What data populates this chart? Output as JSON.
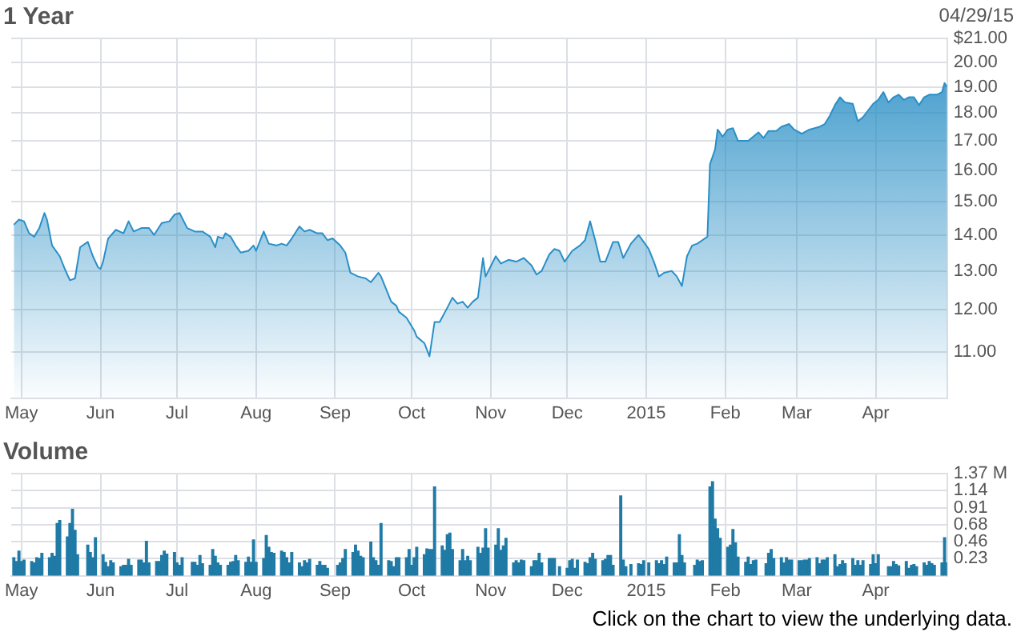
{
  "chart_data": [
    {
      "type": "area",
      "title": "1 Year",
      "annotations": [
        "04/29/15"
      ],
      "log": "y",
      "grid": true,
      "legend": false,
      "xlim": [
        "2014-04-27",
        "2015-04-29"
      ],
      "xticks": [
        {
          "value": "2014-05-01",
          "label": "May"
        },
        {
          "value": "2014-06-01",
          "label": "Jun"
        },
        {
          "value": "2014-07-01",
          "label": "Jul"
        },
        {
          "value": "2014-08-01",
          "label": "Aug"
        },
        {
          "value": "2014-09-01",
          "label": "Sep"
        },
        {
          "value": "2014-10-01",
          "label": "Oct"
        },
        {
          "value": "2014-11-01",
          "label": "Nov"
        },
        {
          "value": "2014-12-01",
          "label": "Dec"
        },
        {
          "value": "2015-01-01",
          "label": "2015"
        },
        {
          "value": "2015-02-01",
          "label": "Feb"
        },
        {
          "value": "2015-03-01",
          "label": "Mar"
        },
        {
          "value": "2015-04-01",
          "label": "Apr"
        }
      ],
      "ylim": [
        10,
        21
      ],
      "yticks": [
        {
          "value": 11,
          "label": "11.00"
        },
        {
          "value": 12,
          "label": "12.00"
        },
        {
          "value": 13,
          "label": "13.00"
        },
        {
          "value": 14,
          "label": "14.00"
        },
        {
          "value": 15,
          "label": "15.00"
        },
        {
          "value": 16,
          "label": "16.00"
        },
        {
          "value": 17,
          "label": "17.00"
        },
        {
          "value": 18,
          "label": "18.00"
        },
        {
          "value": 19,
          "label": "19.00"
        },
        {
          "value": 20,
          "label": "20.00"
        },
        {
          "value": 21,
          "label": "$21.00"
        }
      ],
      "color": "#2a8fc6",
      "x": [
        "2014-04-28",
        "2014-04-30",
        "2014-05-02",
        "2014-05-04",
        "2014-05-06",
        "2014-05-08",
        "2014-05-10",
        "2014-05-11",
        "2014-05-13",
        "2014-05-16",
        "2014-05-18",
        "2014-05-20",
        "2014-05-22",
        "2014-05-24",
        "2014-05-27",
        "2014-05-29",
        "2014-05-31",
        "2014-06-01",
        "2014-06-02",
        "2014-06-04",
        "2014-06-07",
        "2014-06-10",
        "2014-06-12",
        "2014-06-14",
        "2014-06-17",
        "2014-06-20",
        "2014-06-22",
        "2014-06-25",
        "2014-06-28",
        "2014-06-30",
        "2014-07-02",
        "2014-07-05",
        "2014-07-08",
        "2014-07-11",
        "2014-07-14",
        "2014-07-16",
        "2014-07-17",
        "2014-07-19",
        "2014-07-20",
        "2014-07-22",
        "2014-07-24",
        "2014-07-26",
        "2014-07-29",
        "2014-07-31",
        "2014-08-01",
        "2014-08-04",
        "2014-08-06",
        "2014-08-09",
        "2014-08-11",
        "2014-08-13",
        "2014-08-15",
        "2014-08-18",
        "2014-08-20",
        "2014-08-22",
        "2014-08-25",
        "2014-08-27",
        "2014-08-29",
        "2014-08-31",
        "2014-09-03",
        "2014-09-05",
        "2014-09-07",
        "2014-09-10",
        "2014-09-13",
        "2014-09-15",
        "2014-09-18",
        "2014-09-19",
        "2014-09-23",
        "2014-09-25",
        "2014-09-26",
        "2014-09-29",
        "2014-10-02",
        "2014-10-03",
        "2014-10-06",
        "2014-10-08",
        "2014-10-10",
        "2014-10-12",
        "2014-10-15",
        "2014-10-17",
        "2014-10-19",
        "2014-10-21",
        "2014-10-23",
        "2014-10-25",
        "2014-10-27",
        "2014-10-29",
        "2014-10-30",
        "2014-11-03",
        "2014-11-05",
        "2014-11-08",
        "2014-11-11",
        "2014-11-14",
        "2014-11-17",
        "2014-11-19",
        "2014-11-21",
        "2014-11-24",
        "2014-11-26",
        "2014-11-28",
        "2014-11-30",
        "2014-12-03",
        "2014-12-06",
        "2014-12-08",
        "2014-12-10",
        "2014-12-12",
        "2014-12-14",
        "2014-12-16",
        "2014-12-19",
        "2014-12-21",
        "2014-12-23",
        "2014-12-26",
        "2014-12-29",
        "2014-12-31",
        "2015-01-02",
        "2015-01-04",
        "2015-01-06",
        "2015-01-08",
        "2015-01-11",
        "2015-01-13",
        "2015-01-15",
        "2015-01-17",
        "2015-01-19",
        "2015-01-21",
        "2015-01-23",
        "2015-01-25",
        "2015-01-26",
        "2015-01-28",
        "2015-01-29",
        "2015-01-31",
        "2015-02-02",
        "2015-02-04",
        "2015-02-06",
        "2015-02-10",
        "2015-02-14",
        "2015-02-16",
        "2015-02-18",
        "2015-02-21",
        "2015-02-23",
        "2015-02-26",
        "2015-02-28",
        "2015-03-03",
        "2015-03-06",
        "2015-03-10",
        "2015-03-12",
        "2015-03-14",
        "2015-03-16",
        "2015-03-18",
        "2015-03-20",
        "2015-03-23",
        "2015-03-25",
        "2015-03-27",
        "2015-03-31",
        "2015-04-02",
        "2015-04-04",
        "2015-04-06",
        "2015-04-08",
        "2015-04-10",
        "2015-04-12",
        "2015-04-14",
        "2015-04-16",
        "2015-04-18",
        "2015-04-20",
        "2015-04-22",
        "2015-04-25",
        "2015-04-27",
        "2015-04-28",
        "2015-04-29"
      ],
      "values": [
        14.3,
        14.45,
        14.4,
        14.05,
        13.95,
        14.2,
        14.65,
        14.45,
        13.7,
        13.4,
        13.05,
        12.75,
        12.8,
        13.65,
        13.8,
        13.4,
        13.1,
        13.05,
        13.25,
        13.9,
        14.15,
        14.05,
        14.4,
        14.1,
        14.2,
        14.2,
        14.0,
        14.35,
        14.4,
        14.6,
        14.65,
        14.2,
        14.1,
        14.1,
        13.95,
        13.65,
        13.95,
        13.9,
        14.05,
        13.95,
        13.7,
        13.5,
        13.55,
        13.7,
        13.55,
        14.1,
        13.75,
        13.7,
        13.75,
        13.7,
        13.9,
        14.25,
        14.1,
        14.15,
        14.05,
        14.05,
        13.85,
        13.9,
        13.7,
        13.5,
        12.95,
        12.85,
        12.8,
        12.7,
        12.95,
        12.85,
        12.2,
        12.1,
        11.95,
        11.8,
        11.5,
        11.35,
        11.2,
        10.9,
        11.7,
        11.7,
        12.05,
        12.3,
        12.15,
        12.2,
        12.05,
        12.2,
        12.3,
        13.35,
        12.85,
        13.4,
        13.2,
        13.3,
        13.25,
        13.35,
        13.15,
        12.9,
        13.0,
        13.45,
        13.6,
        13.55,
        13.25,
        13.55,
        13.7,
        13.85,
        14.4,
        13.85,
        13.25,
        13.25,
        13.8,
        13.8,
        13.35,
        13.75,
        14.0,
        13.8,
        13.6,
        13.25,
        12.85,
        12.95,
        13.0,
        12.85,
        12.6,
        13.4,
        13.7,
        13.75,
        13.85,
        13.95,
        16.2,
        16.7,
        17.4,
        17.15,
        17.4,
        17.45,
        17.0,
        17.0,
        17.3,
        17.1,
        17.35,
        17.35,
        17.5,
        17.6,
        17.4,
        17.25,
        17.4,
        17.5,
        17.6,
        17.9,
        18.3,
        18.6,
        18.4,
        18.35,
        17.7,
        17.85,
        18.35,
        18.5,
        18.8,
        18.4,
        18.6,
        18.7,
        18.5,
        18.6,
        18.6,
        18.3,
        18.6,
        18.7,
        18.7,
        18.8,
        19.15,
        19.0
      ]
    },
    {
      "type": "bar",
      "title": "Volume",
      "annotations": [
        "Click on the chart to view the underlying data."
      ],
      "grid": true,
      "legend": false,
      "xlim": [
        "2014-04-27",
        "2015-04-29"
      ],
      "xticks": [
        {
          "value": "2014-05-01",
          "label": "May"
        },
        {
          "value": "2014-06-01",
          "label": "Jun"
        },
        {
          "value": "2014-07-01",
          "label": "Jul"
        },
        {
          "value": "2014-08-01",
          "label": "Aug"
        },
        {
          "value": "2014-09-01",
          "label": "Sep"
        },
        {
          "value": "2014-10-01",
          "label": "Oct"
        },
        {
          "value": "2014-11-01",
          "label": "Nov"
        },
        {
          "value": "2014-12-01",
          "label": "Dec"
        },
        {
          "value": "2015-01-01",
          "label": "2015"
        },
        {
          "value": "2015-02-01",
          "label": "Feb"
        },
        {
          "value": "2015-03-01",
          "label": "Mar"
        },
        {
          "value": "2015-04-01",
          "label": "Apr"
        }
      ],
      "ylim": [
        0,
        1.37
      ],
      "yticks": [
        0.23,
        0.46,
        0.68,
        0.91,
        1.14,
        {
          "value": 1.37,
          "label": "1.37 M"
        }
      ],
      "color": "#1f7aa6",
      "x": [
        "2014-04-28",
        "2014-04-29",
        "2014-04-30",
        "2014-05-01",
        "2014-05-02",
        "2014-05-05",
        "2014-05-06",
        "2014-05-07",
        "2014-05-08",
        "2014-05-09",
        "2014-05-12",
        "2014-05-13",
        "2014-05-14",
        "2014-05-15",
        "2014-05-16",
        "2014-05-19",
        "2014-05-20",
        "2014-05-21",
        "2014-05-22",
        "2014-05-23",
        "2014-05-27",
        "2014-05-28",
        "2014-05-29",
        "2014-05-30",
        "2014-06-02",
        "2014-06-03",
        "2014-06-04",
        "2014-06-05",
        "2014-06-06",
        "2014-06-09",
        "2014-06-10",
        "2014-06-11",
        "2014-06-12",
        "2014-06-13",
        "2014-06-16",
        "2014-06-17",
        "2014-06-18",
        "2014-06-19",
        "2014-06-20",
        "2014-06-23",
        "2014-06-24",
        "2014-06-25",
        "2014-06-26",
        "2014-06-27",
        "2014-06-30",
        "2014-07-01",
        "2014-07-02",
        "2014-07-03",
        "2014-07-07",
        "2014-07-08",
        "2014-07-09",
        "2014-07-10",
        "2014-07-11",
        "2014-07-14",
        "2014-07-15",
        "2014-07-16",
        "2014-07-17",
        "2014-07-18",
        "2014-07-21",
        "2014-07-22",
        "2014-07-23",
        "2014-07-24",
        "2014-07-25",
        "2014-07-28",
        "2014-07-29",
        "2014-07-30",
        "2014-07-31",
        "2014-08-01",
        "2014-08-04",
        "2014-08-05",
        "2014-08-06",
        "2014-08-07",
        "2014-08-08",
        "2014-08-11",
        "2014-08-12",
        "2014-08-13",
        "2014-08-14",
        "2014-08-15",
        "2014-08-18",
        "2014-08-19",
        "2014-08-20",
        "2014-08-21",
        "2014-08-22",
        "2014-08-25",
        "2014-08-26",
        "2014-08-27",
        "2014-08-28",
        "2014-08-29",
        "2014-09-02",
        "2014-09-03",
        "2014-09-04",
        "2014-09-05",
        "2014-09-08",
        "2014-09-09",
        "2014-09-10",
        "2014-09-11",
        "2014-09-12",
        "2014-09-15",
        "2014-09-16",
        "2014-09-17",
        "2014-09-18",
        "2014-09-19",
        "2014-09-22",
        "2014-09-23",
        "2014-09-24",
        "2014-09-25",
        "2014-09-26",
        "2014-09-29",
        "2014-09-30",
        "2014-10-01",
        "2014-10-02",
        "2014-10-03",
        "2014-10-06",
        "2014-10-07",
        "2014-10-08",
        "2014-10-09",
        "2014-10-10",
        "2014-10-13",
        "2014-10-14",
        "2014-10-15",
        "2014-10-16",
        "2014-10-17",
        "2014-10-20",
        "2014-10-21",
        "2014-10-22",
        "2014-10-23",
        "2014-10-24",
        "2014-10-27",
        "2014-10-28",
        "2014-10-29",
        "2014-10-30",
        "2014-10-31",
        "2014-11-03",
        "2014-11-04",
        "2014-11-05",
        "2014-11-06",
        "2014-11-07",
        "2014-11-10",
        "2014-11-11",
        "2014-11-12",
        "2014-11-13",
        "2014-11-14",
        "2014-11-17",
        "2014-11-18",
        "2014-11-19",
        "2014-11-20",
        "2014-11-21",
        "2014-11-24",
        "2014-11-25",
        "2014-11-26",
        "2014-11-28",
        "2014-12-01",
        "2014-12-02",
        "2014-12-03",
        "2014-12-04",
        "2014-12-05",
        "2014-12-08",
        "2014-12-09",
        "2014-12-10",
        "2014-12-11",
        "2014-12-12",
        "2014-12-15",
        "2014-12-16",
        "2014-12-17",
        "2014-12-18",
        "2014-12-19",
        "2014-12-22",
        "2014-12-23",
        "2014-12-24",
        "2014-12-26",
        "2014-12-29",
        "2014-12-30",
        "2014-12-31",
        "2015-01-02",
        "2015-01-05",
        "2015-01-06",
        "2015-01-07",
        "2015-01-08",
        "2015-01-09",
        "2015-01-12",
        "2015-01-13",
        "2015-01-14",
        "2015-01-15",
        "2015-01-16",
        "2015-01-20",
        "2015-01-21",
        "2015-01-22",
        "2015-01-23",
        "2015-01-26",
        "2015-01-27",
        "2015-01-28",
        "2015-01-29",
        "2015-01-30",
        "2015-02-02",
        "2015-02-03",
        "2015-02-04",
        "2015-02-05",
        "2015-02-06",
        "2015-02-09",
        "2015-02-10",
        "2015-02-11",
        "2015-02-12",
        "2015-02-13",
        "2015-02-17",
        "2015-02-18",
        "2015-02-19",
        "2015-02-20",
        "2015-02-23",
        "2015-02-24",
        "2015-02-25",
        "2015-02-26",
        "2015-02-27",
        "2015-03-02",
        "2015-03-03",
        "2015-03-04",
        "2015-03-05",
        "2015-03-06",
        "2015-03-09",
        "2015-03-10",
        "2015-03-11",
        "2015-03-12",
        "2015-03-13",
        "2015-03-16",
        "2015-03-17",
        "2015-03-18",
        "2015-03-19",
        "2015-03-20",
        "2015-03-23",
        "2015-03-24",
        "2015-03-25",
        "2015-03-26",
        "2015-03-27",
        "2015-03-30",
        "2015-03-31",
        "2015-04-01",
        "2015-04-02",
        "2015-04-06",
        "2015-04-07",
        "2015-04-08",
        "2015-04-09",
        "2015-04-10",
        "2015-04-13",
        "2015-04-14",
        "2015-04-15",
        "2015-04-16",
        "2015-04-17",
        "2015-04-20",
        "2015-04-21",
        "2015-04-22",
        "2015-04-23",
        "2015-04-24",
        "2015-04-27",
        "2015-04-28",
        "2015-04-29"
      ],
      "values": [
        0.24,
        0.19,
        0.33,
        0.19,
        0.21,
        0.19,
        0.17,
        0.24,
        0.23,
        0.3,
        0.24,
        0.3,
        0.26,
        0.7,
        0.74,
        0.52,
        0.7,
        0.89,
        0.61,
        0.28,
        0.41,
        0.31,
        0.24,
        0.51,
        0.28,
        0.18,
        0.12,
        0.2,
        0.17,
        0.12,
        0.14,
        0.14,
        0.22,
        0.14,
        0.21,
        0.21,
        0.17,
        0.46,
        0.17,
        0.19,
        0.19,
        0.27,
        0.33,
        0.29,
        0.31,
        0.17,
        0.14,
        0.24,
        0.18,
        0.18,
        0.14,
        0.27,
        0.16,
        0.14,
        0.35,
        0.26,
        0.17,
        0.14,
        0.14,
        0.18,
        0.19,
        0.27,
        0.2,
        0.18,
        0.25,
        0.18,
        0.48,
        0.18,
        0.23,
        0.54,
        0.38,
        0.31,
        0.3,
        0.33,
        0.31,
        0.24,
        0.17,
        0.31,
        0.17,
        0.12,
        0.2,
        0.17,
        0.22,
        0.14,
        0.19,
        0.14,
        0.14,
        0.1,
        0.14,
        0.17,
        0.23,
        0.35,
        0.31,
        0.41,
        0.33,
        0.26,
        0.24,
        0.45,
        0.24,
        0.2,
        0.14,
        0.7,
        0.2,
        0.19,
        0.12,
        0.24,
        0.24,
        0.24,
        0.35,
        0.14,
        0.24,
        0.38,
        0.28,
        0.36,
        0.35,
        0.35,
        1.19,
        0.4,
        0.34,
        0.55,
        0.57,
        0.35,
        0.2,
        0.35,
        0.2,
        0.26,
        0.2,
        0.38,
        0.3,
        0.37,
        0.63,
        0.37,
        0.41,
        0.63,
        0.34,
        0.4,
        0.5,
        0.17,
        0.2,
        0.17,
        0.21,
        0.2,
        0.12,
        0.2,
        0.2,
        0.3,
        0.17,
        0.23,
        0.23,
        0.23,
        0.12,
        0.1,
        0.2,
        0.22,
        0.1,
        0.21,
        0.18,
        0.16,
        0.24,
        0.3,
        0.22,
        0.2,
        0.22,
        0.27,
        0.27,
        0.14,
        1.07,
        0.21,
        0.12,
        0.15,
        0.16,
        0.15,
        0.2,
        0.17,
        0.2,
        0.16,
        0.2,
        0.15,
        0.25,
        0.17,
        0.17,
        0.55,
        0.27,
        0.17,
        0.14,
        0.21,
        0.19,
        0.2,
        1.19,
        1.26,
        0.76,
        0.63,
        0.5,
        0.38,
        0.41,
        0.62,
        0.44,
        0.25,
        0.18,
        0.25,
        0.15,
        0.2,
        0.21,
        0.16,
        0.3,
        0.35,
        0.23,
        0.24,
        0.17,
        0.24,
        0.21,
        0.21,
        0.2,
        0.2,
        0.21,
        0.21,
        0.23,
        0.24,
        0.16,
        0.21,
        0.21,
        0.24,
        0.28,
        0.12,
        0.15,
        0.2,
        0.16,
        0.23,
        0.14,
        0.2,
        0.14,
        0.2,
        0.15,
        0.28,
        0.16,
        0.28,
        0.12,
        0.12,
        0.19,
        0.15,
        0.13,
        0.19,
        0.1,
        0.14,
        0.15,
        0.12,
        0.17,
        0.14,
        0.19,
        0.16,
        0.14,
        0.17,
        0.51,
        0.17
      ]
    }
  ]
}
